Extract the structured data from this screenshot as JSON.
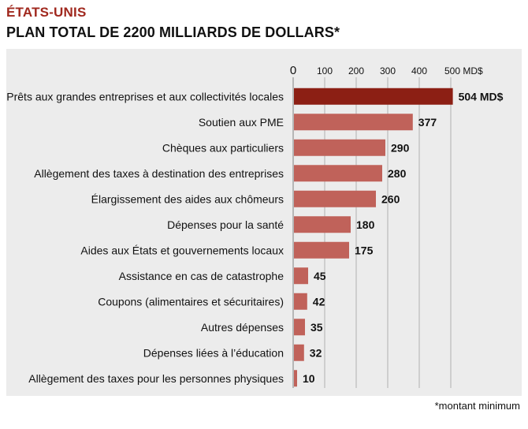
{
  "header": {
    "kicker": "ÉTATS-UNIS",
    "title": "PLAN TOTAL DE 2200 MILLIARDS DE DOLLARS*"
  },
  "footnote": "*montant minimum",
  "colors": {
    "highlight": "#8c1f14",
    "bar": "#c0625a",
    "panel": "#ececec",
    "gridline": "#999999",
    "text": "#111111",
    "kicker": "#a0281e"
  },
  "chart_data": {
    "type": "bar",
    "orientation": "horizontal",
    "unit": "MD$",
    "xlim": [
      0,
      500
    ],
    "ticks": [
      0,
      100,
      200,
      300,
      400,
      500
    ],
    "tick_labels": [
      "0",
      "100",
      "200",
      "300",
      "400",
      "500 MD$"
    ],
    "highlight_index": 0,
    "categories": [
      "Prêts aux grandes entreprises et aux collectivités locales",
      "Soutien aux PME",
      "Chèques aux particuliers",
      "Allègement des taxes à destination des entreprises",
      "Élargissement des aides aux chômeurs",
      "Dépenses pour la santé",
      "Aides aux États et gouvernements locaux",
      "Assistance en cas de catastrophe",
      "Coupons (alimentaires et sécuritaires)",
      "Autres dépenses",
      "Dépenses liées à l’éducation",
      "Allègement des taxes pour les personnes physiques"
    ],
    "values": [
      504,
      377,
      290,
      280,
      260,
      180,
      175,
      45,
      42,
      35,
      32,
      10
    ],
    "value_labels": [
      "504 MD$",
      "377",
      "290",
      "280",
      "260",
      "180",
      "175",
      "45",
      "42",
      "35",
      "32",
      "10"
    ]
  }
}
